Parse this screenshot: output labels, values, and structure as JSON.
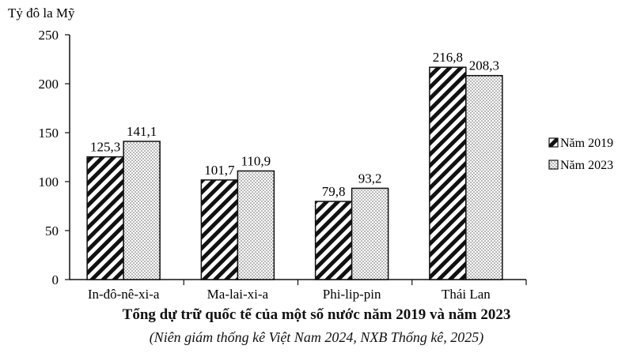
{
  "chart_data": {
    "type": "bar",
    "ylabel": "Tỷ đô la Mỹ",
    "ylim": [
      0,
      250
    ],
    "yticks": [
      0,
      50,
      100,
      150,
      200,
      250
    ],
    "categories": [
      "In-đô-nê-xi-a",
      "Ma-lai-xi-a",
      "Phi-lip-pin",
      "Thái Lan"
    ],
    "series": [
      {
        "name": "Năm 2019",
        "values": [
          125.3,
          101.7,
          79.8,
          216.8
        ],
        "labels": [
          "125,3",
          "101,7",
          "79,8",
          "216,8"
        ],
        "pattern": "diagonal-hatch"
      },
      {
        "name": "Năm 2023",
        "values": [
          141.1,
          110.9,
          93.2,
          208.3
        ],
        "labels": [
          "141,1",
          "110,9",
          "93,2",
          "208,3"
        ],
        "pattern": "dots"
      }
    ],
    "legend_position": "right",
    "grid": false,
    "title": "Tổng dự trữ quốc tế của một số nước năm 2019 và năm 2023",
    "subtitle": "(Niên giám thống kê Việt Nam 2024, NXB Thống kê, 2025)"
  }
}
